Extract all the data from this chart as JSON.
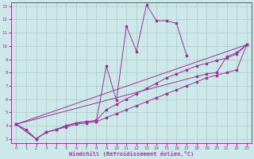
{
  "xlabel": "Windchill (Refroidissement éolien,°C)",
  "xlim": [
    -0.5,
    23.5
  ],
  "ylim": [
    2.7,
    13.3
  ],
  "xticks": [
    0,
    1,
    2,
    3,
    4,
    5,
    6,
    7,
    8,
    9,
    10,
    11,
    12,
    13,
    14,
    15,
    16,
    17,
    18,
    19,
    20,
    21,
    22,
    23
  ],
  "yticks": [
    3,
    4,
    5,
    6,
    7,
    8,
    9,
    10,
    11,
    12,
    13
  ],
  "bg_color": "#cce8e8",
  "grid_color": "#aacccc",
  "line_color": "#993399",
  "series1_x": [
    0,
    1,
    2,
    3,
    4,
    5,
    6,
    7,
    8,
    9,
    10,
    11,
    12,
    13,
    14,
    15,
    16,
    17
  ],
  "series1_y": [
    4.1,
    3.7,
    3.0,
    3.5,
    3.7,
    4.0,
    4.2,
    4.3,
    4.3,
    8.5,
    5.9,
    11.5,
    9.6,
    13.1,
    11.9,
    11.9,
    11.7,
    9.3
  ],
  "series2_x": [
    0,
    18,
    19,
    20,
    21,
    22,
    23
  ],
  "series2_y": [
    4.1,
    7.7,
    7.9,
    8.0,
    9.2,
    9.5,
    10.1
  ],
  "series3_x": [
    0,
    2,
    3,
    4,
    5,
    6,
    7,
    8,
    9,
    10,
    11,
    12,
    13,
    14,
    15,
    16,
    17,
    18,
    19,
    20,
    21,
    22,
    23
  ],
  "series3_y": [
    4.1,
    3.0,
    3.5,
    3.7,
    4.0,
    4.2,
    4.3,
    4.4,
    5.2,
    5.6,
    6.0,
    6.4,
    6.8,
    7.2,
    7.6,
    7.9,
    8.2,
    8.5,
    8.7,
    8.9,
    9.1,
    9.4,
    10.1
  ],
  "series4_x": [
    0,
    23
  ],
  "series4_y": [
    4.1,
    10.1
  ],
  "series5_x": [
    0,
    2,
    3,
    4,
    5,
    6,
    7,
    8,
    9,
    10,
    11,
    12,
    13,
    14,
    15,
    16,
    17,
    18,
    19,
    20,
    21,
    22,
    23
  ],
  "series5_y": [
    4.1,
    3.0,
    3.5,
    3.7,
    3.9,
    4.1,
    4.2,
    4.3,
    4.6,
    4.9,
    5.2,
    5.5,
    5.8,
    6.1,
    6.4,
    6.7,
    7.0,
    7.3,
    7.6,
    7.8,
    8.0,
    8.2,
    10.1
  ]
}
